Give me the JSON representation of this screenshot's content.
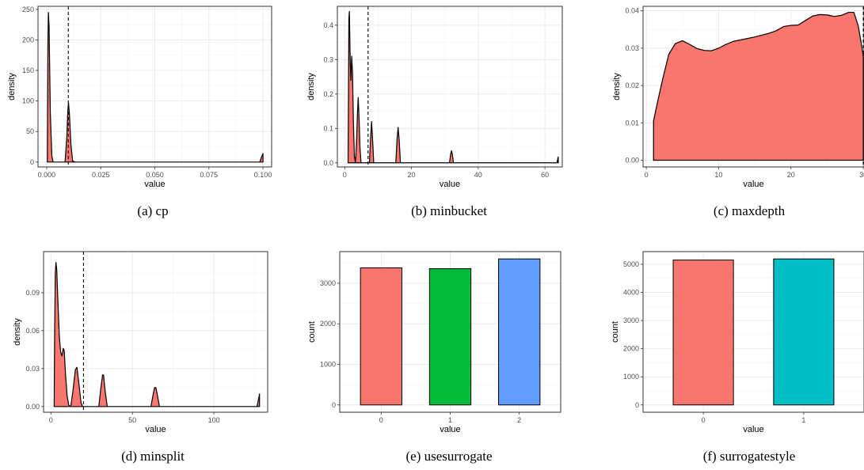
{
  "chart_data": [
    {
      "type": "area",
      "caption": "(a) cp",
      "xlabel": "value",
      "ylabel": "density",
      "xlim": [
        -0.004,
        0.104
      ],
      "ylim": [
        -8,
        255
      ],
      "xticks": [
        0,
        0.025,
        0.05,
        0.075,
        0.1
      ],
      "xtick_labels": [
        "0.000",
        "0.025",
        "0.050",
        "0.075",
        "0.100"
      ],
      "yticks": [
        0,
        50,
        100,
        150,
        200,
        250
      ],
      "ytick_labels": [
        "0",
        "50",
        "100",
        "150",
        "200",
        "250"
      ],
      "vline": 0.01,
      "points": [
        [
          0.0003,
          0
        ],
        [
          0.0006,
          200
        ],
        [
          0.0008,
          245
        ],
        [
          0.0011,
          225
        ],
        [
          0.0017,
          80
        ],
        [
          0.0024,
          10
        ],
        [
          0.003,
          0
        ],
        [
          0.0085,
          0
        ],
        [
          0.0093,
          40
        ],
        [
          0.0098,
          85
        ],
        [
          0.0101,
          97
        ],
        [
          0.0105,
          80
        ],
        [
          0.0112,
          30
        ],
        [
          0.012,
          2
        ],
        [
          0.013,
          0
        ],
        [
          0.0985,
          0
        ],
        [
          0.0993,
          8
        ],
        [
          0.1,
          14
        ],
        [
          0.1,
          0
        ]
      ]
    },
    {
      "type": "area",
      "caption": "(b) minbucket",
      "xlabel": "value",
      "ylabel": "density",
      "xlim": [
        -2.2,
        65.2
      ],
      "ylim": [
        -0.012,
        0.455
      ],
      "xticks": [
        0,
        20,
        40,
        60
      ],
      "xtick_labels": [
        "0",
        "20",
        "40",
        "60"
      ],
      "yticks": [
        0,
        0.1,
        0.2,
        0.3,
        0.4
      ],
      "ytick_labels": [
        "0.0",
        "0.1",
        "0.2",
        "0.3",
        "0.4"
      ],
      "vline": 7,
      "points": [
        [
          1,
          0
        ],
        [
          1.1,
          0.15
        ],
        [
          1.25,
          0.42
        ],
        [
          1.4,
          0.44
        ],
        [
          1.65,
          0.3
        ],
        [
          1.85,
          0.24
        ],
        [
          2.1,
          0.31
        ],
        [
          2.35,
          0.26
        ],
        [
          2.6,
          0.12
        ],
        [
          2.9,
          0.02
        ],
        [
          3.2,
          0
        ],
        [
          3.5,
          0.05
        ],
        [
          3.85,
          0.15
        ],
        [
          4.05,
          0.19
        ],
        [
          4.3,
          0.13
        ],
        [
          4.6,
          0.04
        ],
        [
          4.9,
          0
        ],
        [
          7.4,
          0
        ],
        [
          7.75,
          0.07
        ],
        [
          8.05,
          0.12
        ],
        [
          8.35,
          0.07
        ],
        [
          8.7,
          0
        ],
        [
          15.3,
          0
        ],
        [
          15.7,
          0.07
        ],
        [
          16,
          0.103
        ],
        [
          16.3,
          0.07
        ],
        [
          16.7,
          0
        ],
        [
          31.4,
          0
        ],
        [
          31.75,
          0.025
        ],
        [
          32,
          0.035
        ],
        [
          32.25,
          0.025
        ],
        [
          32.6,
          0
        ],
        [
          63.6,
          0
        ],
        [
          63.85,
          0.012
        ],
        [
          64,
          0.017
        ],
        [
          64,
          0
        ]
      ]
    },
    {
      "type": "area",
      "caption": "(c) maxdepth",
      "xlabel": "value",
      "ylabel": "density",
      "xlim": [
        -0.45,
        30.1
      ],
      "ylim": [
        -0.0018,
        0.0412
      ],
      "xticks": [
        0,
        10,
        20,
        30
      ],
      "xtick_labels": [
        "0",
        "10",
        "20",
        "30"
      ],
      "yticks": [
        0,
        0.01,
        0.02,
        0.03,
        0.04
      ],
      "ytick_labels": [
        "0.00",
        "0.01",
        "0.02",
        "0.03",
        "0.04"
      ],
      "vline": 30,
      "points": [
        [
          1,
          0
        ],
        [
          1,
          0.0105
        ],
        [
          1.6,
          0.016
        ],
        [
          2.3,
          0.022
        ],
        [
          3.1,
          0.0283
        ],
        [
          4,
          0.0312
        ],
        [
          5,
          0.032
        ],
        [
          6,
          0.031
        ],
        [
          7,
          0.0299
        ],
        [
          8,
          0.0294
        ],
        [
          9,
          0.0293
        ],
        [
          10,
          0.03
        ],
        [
          11,
          0.031
        ],
        [
          12,
          0.0318
        ],
        [
          13,
          0.0322
        ],
        [
          14,
          0.0326
        ],
        [
          15,
          0.033
        ],
        [
          16,
          0.0335
        ],
        [
          17,
          0.034
        ],
        [
          18,
          0.0347
        ],
        [
          19,
          0.0358
        ],
        [
          20,
          0.0361
        ],
        [
          21,
          0.0362
        ],
        [
          22,
          0.0374
        ],
        [
          23,
          0.0386
        ],
        [
          24,
          0.039
        ],
        [
          25,
          0.0389
        ],
        [
          26,
          0.0385
        ],
        [
          27,
          0.0388
        ],
        [
          28,
          0.0396
        ],
        [
          28.7,
          0.0396
        ],
        [
          29.3,
          0.036
        ],
        [
          29.75,
          0.031
        ],
        [
          30,
          0.0278
        ],
        [
          30,
          0
        ]
      ]
    },
    {
      "type": "area",
      "caption": "(d) minsplit",
      "xlabel": "value",
      "ylabel": "density",
      "xlim": [
        -4.5,
        133
      ],
      "ylim": [
        -0.0045,
        0.1225
      ],
      "xticks": [
        0,
        50,
        100
      ],
      "xtick_labels": [
        "0",
        "50",
        "100"
      ],
      "yticks": [
        0,
        0.03,
        0.06,
        0.09
      ],
      "ytick_labels": [
        "0.00",
        "0.03",
        "0.06",
        "0.09"
      ],
      "vline": 20,
      "points": [
        [
          2,
          0
        ],
        [
          2.3,
          0.06
        ],
        [
          2.7,
          0.105
        ],
        [
          3.1,
          0.114
        ],
        [
          3.6,
          0.108
        ],
        [
          4.4,
          0.08
        ],
        [
          5.2,
          0.055
        ],
        [
          6,
          0.043
        ],
        [
          6.8,
          0.04
        ],
        [
          7.6,
          0.046
        ],
        [
          8.2,
          0.044
        ],
        [
          9,
          0.025
        ],
        [
          10,
          0.008
        ],
        [
          11,
          0.001
        ],
        [
          12.2,
          0
        ],
        [
          13.5,
          0.012
        ],
        [
          15,
          0.029
        ],
        [
          16,
          0.031
        ],
        [
          17.2,
          0.018
        ],
        [
          18.5,
          0.003
        ],
        [
          19.5,
          0
        ],
        [
          29.4,
          0
        ],
        [
          30.5,
          0.013
        ],
        [
          31.7,
          0.025
        ],
        [
          32.3,
          0.025
        ],
        [
          33.3,
          0.012
        ],
        [
          34.6,
          0
        ],
        [
          61.4,
          0
        ],
        [
          62.5,
          0.008
        ],
        [
          63.6,
          0.015
        ],
        [
          64.4,
          0.015
        ],
        [
          65.5,
          0.008
        ],
        [
          66.6,
          0
        ],
        [
          126.5,
          0
        ],
        [
          127.4,
          0.006
        ],
        [
          128,
          0.01
        ],
        [
          128,
          0
        ]
      ]
    },
    {
      "type": "bar",
      "caption": "(e) usesurrogate",
      "xlabel": "value",
      "ylabel": "count",
      "categories": [
        "0",
        "1",
        "2"
      ],
      "values": [
        3380,
        3360,
        3600
      ],
      "colors": [
        "#F8766D",
        "#00BA38",
        "#619CFF"
      ],
      "ylim": [
        -180,
        3780
      ],
      "yticks": [
        0,
        1000,
        2000,
        3000
      ],
      "ytick_labels": [
        "0",
        "1000",
        "2000",
        "3000"
      ]
    },
    {
      "type": "bar",
      "caption": "(f) surrogatestyle",
      "xlabel": "value",
      "ylabel": "count",
      "categories": [
        "0",
        "1"
      ],
      "values": [
        5150,
        5190
      ],
      "colors": [
        "#F8766D",
        "#00BFC4"
      ],
      "ylim": [
        -260,
        5450
      ],
      "yticks": [
        0,
        1000,
        2000,
        3000,
        4000,
        5000
      ],
      "ytick_labels": [
        "0",
        "1000",
        "2000",
        "3000",
        "4000",
        "5000"
      ]
    }
  ]
}
